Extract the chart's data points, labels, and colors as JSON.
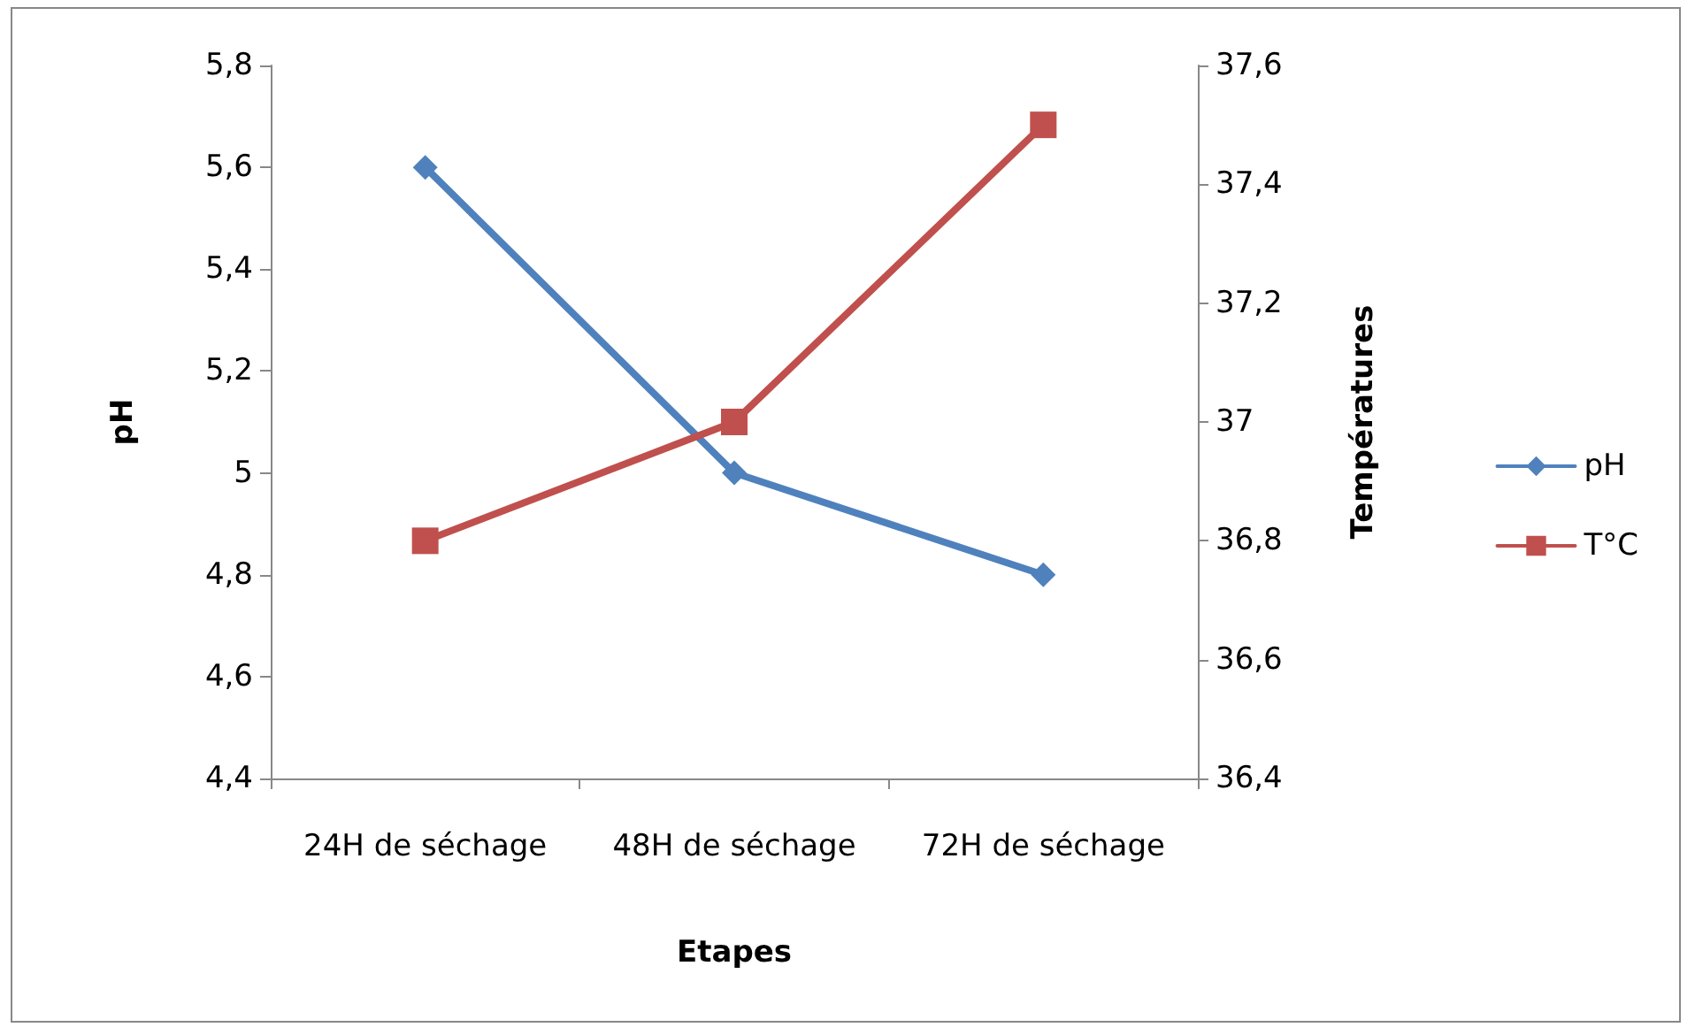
{
  "chart_data": {
    "type": "line",
    "xlabel": "Etapes",
    "ylabel": "pH",
    "y2label": "Températures",
    "categories": [
      "24H de séchage",
      "48H de séchage",
      "72H de séchage"
    ],
    "series": [
      {
        "name": "pH",
        "color": "#4f81bd",
        "values": [
          5.6,
          5.0,
          4.8
        ],
        "marker": "diamond"
      },
      {
        "name": "T°C",
        "color": "#c0504d",
        "values": [
          36.8,
          37.0,
          37.5
        ],
        "marker": "square",
        "axis": "y2"
      }
    ],
    "ylim": [
      4.4,
      5.8
    ],
    "yticks": [
      {
        "value": 4.4,
        "label": "4,4"
      },
      {
        "value": 4.6,
        "label": "4,6"
      },
      {
        "value": 4.8,
        "label": "4,8"
      },
      {
        "value": 5,
        "label": "5"
      },
      {
        "value": 5.2,
        "label": "5,2"
      },
      {
        "value": 5.4,
        "label": "5,4"
      },
      {
        "value": 5.6,
        "label": "5,6"
      },
      {
        "value": 5.8,
        "label": "5,8"
      }
    ],
    "y2lim": [
      36.4,
      37.6
    ],
    "y2ticks": [
      {
        "value": 36.4,
        "label": "36,4"
      },
      {
        "value": 36.6,
        "label": "36,6"
      },
      {
        "value": 36.8,
        "label": "36,8"
      },
      {
        "value": 37,
        "label": "37"
      },
      {
        "value": 37.2,
        "label": "37,2"
      },
      {
        "value": 37.4,
        "label": "37,4"
      },
      {
        "value": 37.6,
        "label": "37,6"
      }
    ],
    "legend": "right",
    "grid": false,
    "line_style": "solid"
  }
}
